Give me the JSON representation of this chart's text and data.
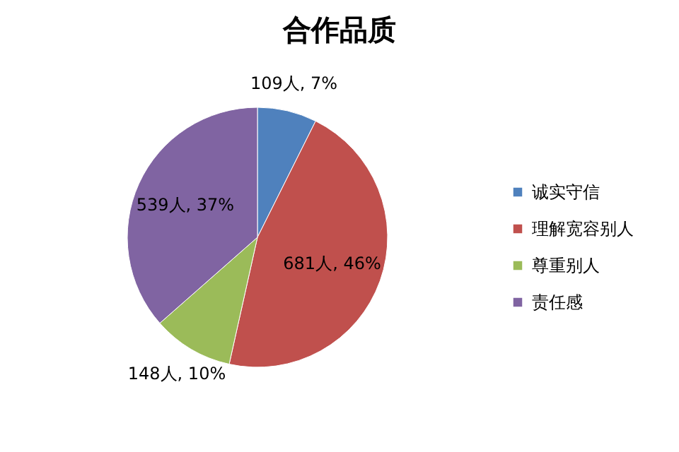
{
  "chart_data": {
    "type": "pie",
    "title": "合作品质",
    "categories": [
      "诚实守信",
      "理解宽容别人",
      "尊重别人",
      "责任感"
    ],
    "values": [
      109,
      681,
      148,
      539
    ],
    "colors": [
      "#4f81bd",
      "#c0504d",
      "#9bbb59",
      "#8064a2"
    ],
    "value_labels": [
      "109人, 7%",
      "681人, 46%",
      "148人, 10%",
      "539人, 37%"
    ],
    "legend": "right"
  }
}
